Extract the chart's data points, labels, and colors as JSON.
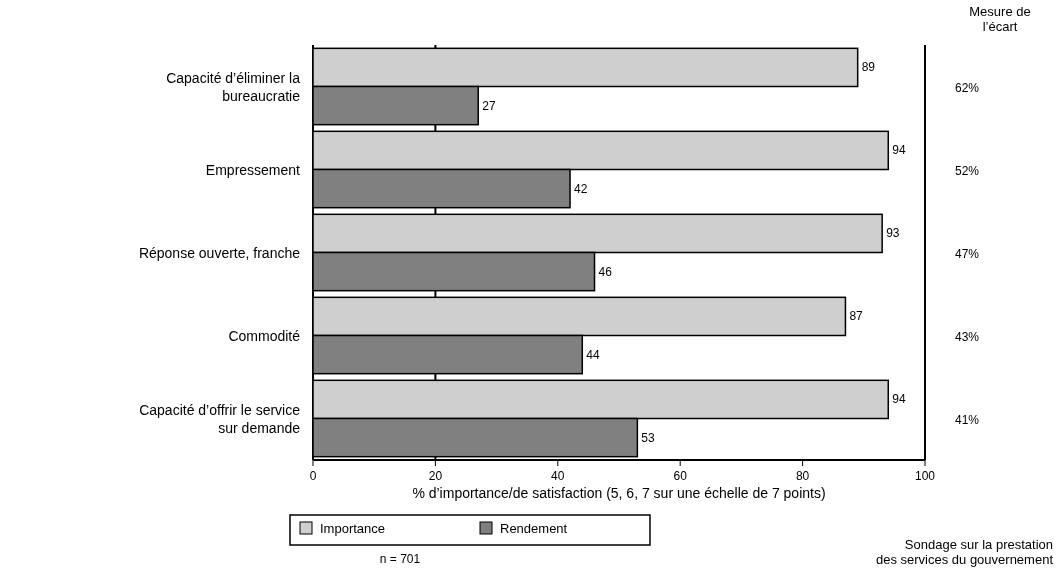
{
  "chart_data": {
    "type": "bar",
    "orientation": "horizontal",
    "xlabel": "% d’importance/de satisfaction (5, 6, 7 sur une échelle de 7 points)",
    "categories": [
      "Capacité d’éliminer la bureaucratie",
      "Empressement",
      "Réponse ouverte, franche",
      "Commodité",
      "Capacité d’offrir le service sur demande"
    ],
    "series": [
      {
        "name": "Importance",
        "color": "#cfcfcf",
        "values": [
          89,
          94,
          93,
          87,
          94
        ]
      },
      {
        "name": "Rendement",
        "color": "#808080",
        "values": [
          27,
          42,
          46,
          44,
          53
        ]
      }
    ],
    "xlim": [
      0,
      100
    ],
    "xticks": [
      0,
      20,
      40,
      60,
      80,
      100
    ],
    "data_labels": true,
    "legend": "bottom",
    "ref_lines": [
      {
        "axis": "x",
        "value": 20
      }
    ],
    "annotations": [
      "Mesure de l’écart",
      "62%",
      "52%",
      "47%",
      "43%",
      "41%",
      "n = 701",
      "Sondage sur la prestation des services du gouvernement"
    ]
  }
}
